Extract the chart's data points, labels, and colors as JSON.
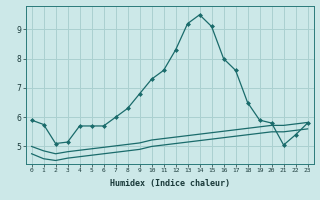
{
  "xlabel": "Humidex (Indice chaleur)",
  "bg_color": "#cce8e8",
  "grid_color": "#aad0d0",
  "line_color": "#1a6b6b",
  "x_values": [
    0,
    1,
    2,
    3,
    4,
    5,
    6,
    7,
    8,
    9,
    10,
    11,
    12,
    13,
    14,
    15,
    16,
    17,
    18,
    19,
    20,
    21,
    22,
    23
  ],
  "main_line": [
    5.9,
    5.75,
    5.1,
    5.15,
    5.7,
    5.7,
    5.7,
    6.0,
    6.3,
    6.8,
    7.3,
    7.6,
    8.3,
    9.2,
    9.5,
    9.1,
    8.0,
    7.6,
    6.5,
    5.9,
    5.8,
    5.05,
    5.4,
    5.8
  ],
  "lower_line1": [
    5.0,
    4.85,
    4.75,
    4.82,
    4.87,
    4.92,
    4.97,
    5.02,
    5.07,
    5.12,
    5.22,
    5.27,
    5.32,
    5.37,
    5.42,
    5.47,
    5.52,
    5.57,
    5.62,
    5.67,
    5.72,
    5.72,
    5.77,
    5.82
  ],
  "lower_line2": [
    4.75,
    4.58,
    4.52,
    4.6,
    4.65,
    4.7,
    4.75,
    4.8,
    4.85,
    4.9,
    5.0,
    5.05,
    5.1,
    5.15,
    5.2,
    5.25,
    5.3,
    5.35,
    5.4,
    5.45,
    5.5,
    5.5,
    5.55,
    5.6
  ],
  "ylim": [
    4.4,
    9.8
  ],
  "yticks": [
    5,
    6,
    7,
    8,
    9
  ],
  "xlim": [
    -0.5,
    23.5
  ],
  "xticks": [
    0,
    1,
    2,
    3,
    4,
    5,
    6,
    7,
    8,
    9,
    10,
    11,
    12,
    13,
    14,
    15,
    16,
    17,
    18,
    19,
    20,
    21,
    22,
    23
  ]
}
